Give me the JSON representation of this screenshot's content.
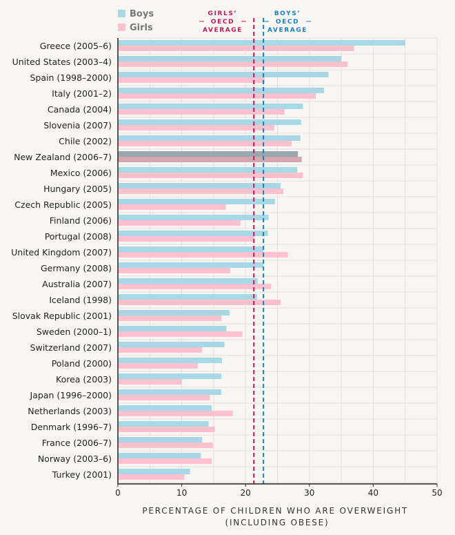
{
  "chart_data": {
    "type": "bar",
    "orientation": "horizontal",
    "xlabel": [
      "PERCENTAGE OF CHILDREN WHO ARE OVERWEIGHT",
      "(INCLUDING OBESE)"
    ],
    "xlim": [
      0,
      50
    ],
    "xticks": [
      0,
      10,
      20,
      30,
      40,
      50
    ],
    "grid": true,
    "legend_placement": "top-left",
    "categories": [
      "Greece (2005–6)",
      "United States (2003–4)",
      "Spain (1998–2000)",
      "Italy (2001–2)",
      "Canada (2004)",
      "Slovenia (2007)",
      "Chile (2002)",
      "New Zealand (2006–7)",
      "Mexico (2006)",
      "Hungary (2005)",
      "Czech Republic (2005)",
      "Finland (2006)",
      "Portugal (2008)",
      "United Kingdom (2007)",
      "Germany (2008)",
      "Australia (2007)",
      "Iceland (1998)",
      "Slovak Republic (2001)",
      "Sweden (2000–1)",
      "Switzerland (2007)",
      "Poland (2000)",
      "Korea (2003)",
      "Japan (1996–2000)",
      "Netherlands (2003)",
      "Denmark (1996–7)",
      "France (2006–7)",
      "Norway (2003–6)",
      "Turkey (2001)"
    ],
    "highlight_category": "New Zealand (2006–7)",
    "series": [
      {
        "name": "Boys",
        "color": "#a8d8e6",
        "highlight_color": "#97a9ae",
        "values": [
          45.0,
          35.0,
          33.0,
          32.3,
          29.0,
          28.7,
          28.6,
          28.2,
          28.1,
          25.5,
          24.6,
          23.6,
          23.5,
          22.8,
          22.8,
          21.9,
          21.8,
          17.5,
          17.0,
          16.7,
          16.3,
          16.2,
          16.2,
          14.7,
          14.2,
          13.2,
          13.0,
          11.3
        ]
      },
      {
        "name": "Girls",
        "color": "#fdc0cd",
        "highlight_color": "#d2a8ae",
        "values": [
          37.0,
          36.0,
          23.0,
          31.0,
          26.1,
          24.5,
          27.2,
          28.8,
          29.0,
          25.9,
          16.9,
          19.2,
          21.4,
          26.6,
          17.6,
          24.0,
          25.5,
          16.2,
          19.5,
          13.2,
          12.5,
          10.0,
          14.4,
          18.0,
          15.2,
          14.9,
          14.7,
          10.4
        ]
      }
    ],
    "reference_lines": [
      {
        "label": [
          "GIRLS’",
          "OECD",
          "AVERAGE"
        ],
        "value": 21.3,
        "color": "#c2185b",
        "style": "dashed"
      },
      {
        "label": [
          "BOYS’",
          "OECD",
          "AVERAGE"
        ],
        "value": 22.8,
        "color": "#1a7fc1",
        "style": "dashed"
      }
    ]
  }
}
